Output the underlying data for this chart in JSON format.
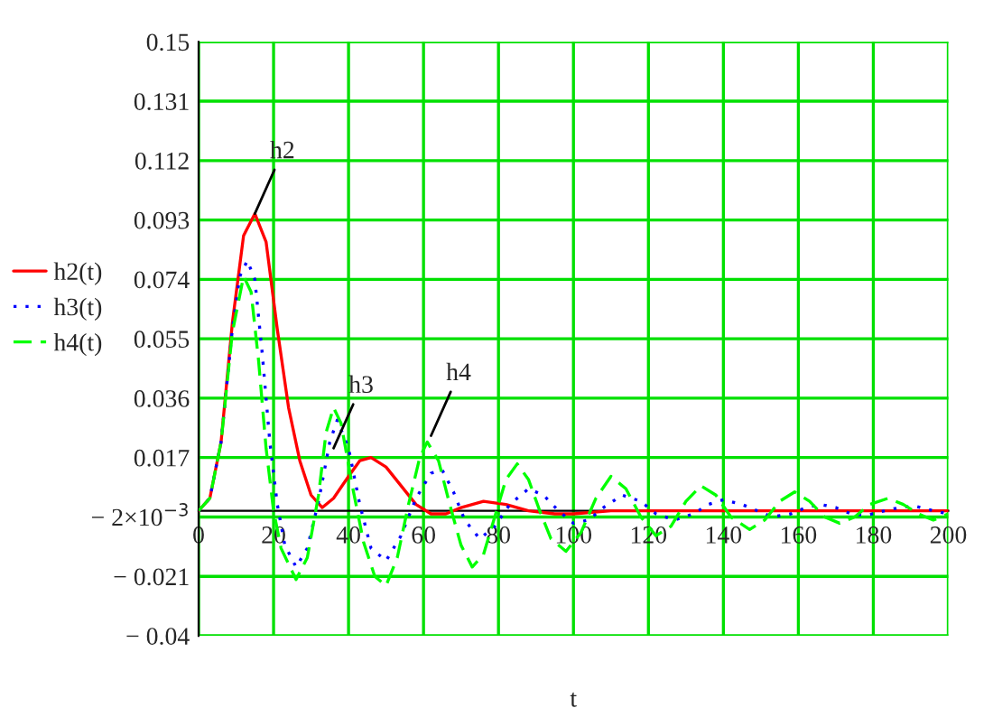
{
  "chart_data": {
    "type": "line",
    "xlabel": "t",
    "legend": "left",
    "xlim": [
      0,
      200
    ],
    "xticks": [
      0,
      20,
      40,
      60,
      80,
      100,
      120,
      140,
      160,
      180,
      200
    ],
    "ylim": [
      -0.04,
      0.15
    ],
    "yticks": [
      {
        "value": -0.04,
        "label": "− 0.04"
      },
      {
        "value": -0.021,
        "label": "− 0.021"
      },
      {
        "value": -0.002,
        "label": "− 2×10$^{−3}$"
      },
      0.017,
      0.036,
      0.055,
      0.074,
      0.093,
      0.112,
      0.131,
      0.15
    ],
    "grid": true,
    "series": [
      {
        "name": "h2(t)",
        "color": "#ff0000",
        "line_style": "solid",
        "x": [
          0,
          3,
          6,
          9,
          12,
          15,
          18,
          21,
          24,
          27,
          30,
          33,
          36,
          40,
          43,
          46,
          50,
          54,
          58,
          62,
          66,
          70,
          76,
          82,
          88,
          95,
          100,
          110,
          120,
          150,
          200
        ],
        "values": [
          0,
          0.004,
          0.022,
          0.06,
          0.088,
          0.095,
          0.086,
          0.058,
          0.033,
          0.016,
          0.005,
          0.001,
          0.004,
          0.011,
          0.016,
          0.017,
          0.014,
          0.008,
          0.002,
          -0.001,
          -0.001,
          0.001,
          0.003,
          0.002,
          0,
          -0.001,
          -0.001,
          0,
          0,
          0,
          0
        ]
      },
      {
        "name": "h3(t)",
        "color": "#0000ff",
        "line_style": "dotted",
        "x": [
          0,
          3,
          6,
          9,
          11,
          13,
          15,
          17,
          19,
          21,
          23,
          26,
          29,
          32,
          35,
          37,
          40,
          43,
          46,
          50,
          54,
          58,
          62,
          65,
          68,
          71,
          75,
          79,
          83,
          88,
          92,
          96,
          100,
          104,
          108,
          113,
          118,
          122,
          127,
          132,
          136,
          140,
          145,
          149,
          153,
          158,
          162,
          166,
          170,
          174,
          178,
          183,
          187,
          191,
          196,
          200
        ],
        "values": [
          0,
          0.004,
          0.022,
          0.058,
          0.075,
          0.08,
          0.074,
          0.05,
          0.022,
          0.002,
          -0.011,
          -0.018,
          -0.012,
          0.003,
          0.022,
          0.029,
          0.02,
          0.002,
          -0.012,
          -0.016,
          -0.008,
          0.004,
          0.012,
          0.013,
          0.006,
          -0.003,
          -0.009,
          -0.005,
          0.002,
          0.007,
          0.005,
          0,
          -0.004,
          -0.003,
          0.001,
          0.005,
          0.003,
          -0.001,
          -0.003,
          -0.001,
          0.002,
          0.0035,
          0.002,
          0,
          -0.002,
          -0.001,
          0.001,
          0.002,
          0.001,
          -0.001,
          -0.0015,
          0,
          0.001,
          0.0015,
          0,
          -0.001
        ]
      },
      {
        "name": "h4(t)",
        "color": "#00ff00",
        "line_style": "dashed",
        "x": [
          0,
          3,
          6,
          9,
          12,
          14,
          16,
          18,
          20,
          22,
          26,
          29,
          32,
          34,
          36,
          38,
          41,
          44,
          47,
          50,
          53,
          56,
          59,
          61,
          64,
          67,
          70,
          73,
          76,
          79,
          82,
          85,
          88,
          91,
          94,
          98,
          102,
          106,
          110,
          114,
          118,
          122,
          126,
          130,
          134,
          138,
          142,
          147,
          151,
          155,
          159,
          163,
          167,
          171,
          175,
          179,
          184,
          188,
          192,
          196,
          200
        ],
        "values": [
          0,
          0.004,
          0.022,
          0.057,
          0.075,
          0.07,
          0.048,
          0.02,
          0,
          -0.012,
          -0.022,
          -0.015,
          0.005,
          0.025,
          0.033,
          0.028,
          0.008,
          -0.01,
          -0.021,
          -0.024,
          -0.015,
          0.002,
          0.017,
          0.022,
          0.016,
          0.002,
          -0.011,
          -0.018,
          -0.014,
          -0.002,
          0.01,
          0.015,
          0.01,
          0,
          -0.009,
          -0.013,
          -0.007,
          0.004,
          0.011,
          0.007,
          -0.002,
          -0.008,
          -0.005,
          0.003,
          0.008,
          0.005,
          -0.002,
          -0.006,
          -0.003,
          0.003,
          0.006,
          0.003,
          -0.002,
          -0.004,
          -0.002,
          0.002,
          0.004,
          0.002,
          -0.001,
          -0.003,
          -0.001
        ]
      }
    ],
    "annotations": [
      {
        "text": "h2",
        "x": 15,
        "y": 0.095
      },
      {
        "text": "h3",
        "x": 36,
        "y": 0.02
      },
      {
        "text": "h4",
        "x": 62,
        "y": 0.024
      }
    ]
  }
}
